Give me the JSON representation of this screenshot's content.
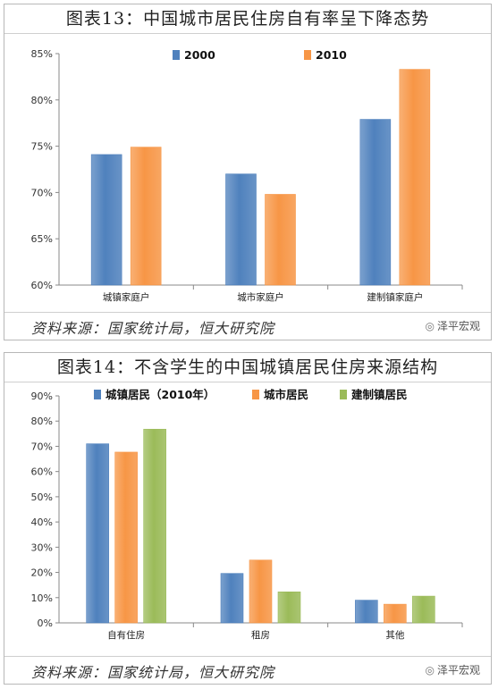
{
  "panels": [
    {
      "title": "图表13：中国城市居民住房自有率呈下降态势",
      "source": "资料来源：国家统计局，恒大研究院",
      "brand": "泽平宏观"
    },
    {
      "title": "图表14：不含学生的中国城镇居民住房来源结构",
      "source": "资料来源：国家统计局，恒大研究院",
      "brand": "泽平宏观"
    }
  ],
  "chart_data": [
    {
      "type": "bar",
      "categories": [
        "城镇家庭户",
        "城市家庭户",
        "建制镇家庭户"
      ],
      "series": [
        {
          "name": "2000",
          "values": [
            74.1,
            72.0,
            77.9
          ],
          "color": "#4f81bd"
        },
        {
          "name": "2010",
          "values": [
            74.9,
            69.8,
            83.3
          ],
          "color": "#f79646"
        }
      ],
      "ylim": [
        60,
        85
      ],
      "yticks": [
        "60%",
        "65%",
        "70%",
        "75%",
        "80%",
        "85%"
      ],
      "ytick_values": [
        60,
        65,
        70,
        75,
        80,
        85
      ],
      "grid": false,
      "legend": "top"
    },
    {
      "type": "bar",
      "categories": [
        "自有住房",
        "租房",
        "其他"
      ],
      "series": [
        {
          "name": "城镇居民（2010年）",
          "values": [
            71,
            19.6,
            9
          ],
          "color": "#4f81bd"
        },
        {
          "name": "城市居民",
          "values": [
            67.7,
            24.9,
            7.4
          ],
          "color": "#f79646"
        },
        {
          "name": "建制镇居民",
          "values": [
            76.8,
            12.3,
            10.6
          ],
          "color": "#9bbb59"
        }
      ],
      "ylim": [
        0,
        90
      ],
      "yticks": [
        "0%",
        "10%",
        "20%",
        "30%",
        "40%",
        "50%",
        "60%",
        "70%",
        "80%",
        "90%"
      ],
      "ytick_values": [
        0,
        10,
        20,
        30,
        40,
        50,
        60,
        70,
        80,
        90
      ],
      "grid": false,
      "legend": "top"
    }
  ]
}
